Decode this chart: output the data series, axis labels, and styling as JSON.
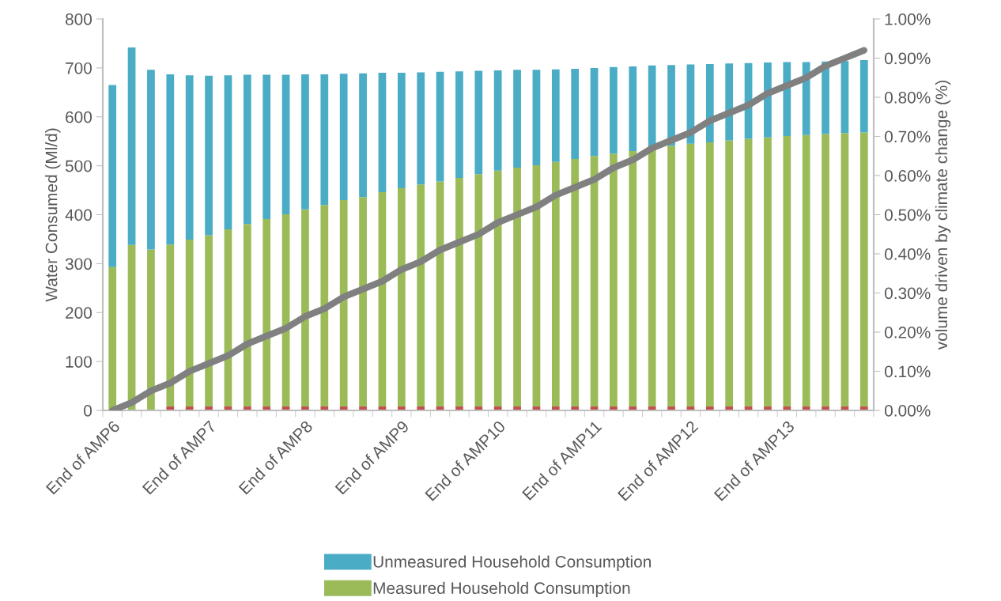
{
  "chart_data": {
    "type": "bar",
    "stacked": true,
    "ylabel": "Water Consumed (Ml/d)",
    "y2label": "volume driven by climate change (%)",
    "categories": [
      "End of AMP6",
      null,
      null,
      null,
      null,
      "End of AMP7",
      null,
      null,
      null,
      null,
      "End of AMP8",
      null,
      null,
      null,
      null,
      "End of AMP9",
      null,
      null,
      null,
      null,
      "End of AMP10",
      null,
      null,
      null,
      null,
      "End of AMP11",
      null,
      null,
      null,
      null,
      "End of AMP12",
      null,
      null,
      null,
      null,
      "End of AMP13",
      null,
      null,
      null,
      null
    ],
    "series": [
      {
        "color": "#c0504d",
        "values": [
          0,
          0,
          0,
          8,
          8,
          8,
          8,
          8,
          8,
          8,
          8,
          8,
          8,
          8,
          8,
          8,
          8,
          8,
          8,
          8,
          8,
          8,
          8,
          8,
          8,
          8,
          8,
          8,
          8,
          8,
          8,
          8,
          8,
          8,
          8,
          8,
          8,
          8,
          8,
          8
        ]
      },
      {
        "name": "Measured Household Consumption",
        "color": "#9bbb59",
        "values": [
          293,
          338,
          329,
          331,
          341,
          350,
          362,
          373,
          383,
          393,
          403,
          412,
          422,
          428,
          438,
          446,
          454,
          460,
          467,
          475,
          482,
          488,
          493,
          500,
          506,
          512,
          517,
          522,
          529,
          533,
          537,
          540,
          544,
          547,
          550,
          553,
          555,
          557,
          559,
          560
        ]
      },
      {
        "name": "Unmeasured Household Consumption",
        "color": "#4bacc6",
        "values": [
          372,
          404,
          367,
          348,
          336,
          326,
          315,
          305,
          295,
          285,
          276,
          267,
          258,
          253,
          244,
          236,
          229,
          224,
          218,
          211,
          205,
          200,
          195,
          189,
          184,
          180,
          177,
          173,
          168,
          165,
          162,
          160,
          157,
          155,
          153,
          151,
          149,
          148,
          147,
          148
        ]
      },
      {
        "type": "line",
        "axis": "y2",
        "color": "#808080",
        "values": [
          0.0,
          0.02,
          0.05,
          0.07,
          0.1,
          0.12,
          0.14,
          0.17,
          0.19,
          0.21,
          0.24,
          0.26,
          0.29,
          0.31,
          0.33,
          0.36,
          0.38,
          0.41,
          0.43,
          0.45,
          0.48,
          0.5,
          0.52,
          0.55,
          0.57,
          0.59,
          0.62,
          0.64,
          0.67,
          0.69,
          0.71,
          0.74,
          0.76,
          0.78,
          0.81,
          0.83,
          0.85,
          0.88,
          0.9,
          0.92
        ]
      }
    ],
    "ylim": [
      0,
      800
    ],
    "yticks": [
      0,
      100,
      200,
      300,
      400,
      500,
      600,
      700,
      800
    ],
    "y2lim": [
      0,
      1
    ],
    "y2ticks": [
      {
        "value": 0,
        "label": "0.00%"
      },
      {
        "value": 0.1,
        "label": "0.10%"
      },
      {
        "value": 0.2,
        "label": "0.20%"
      },
      {
        "value": 0.3,
        "label": "0.30%"
      },
      {
        "value": 0.4,
        "label": "0.40%"
      },
      {
        "value": 0.5,
        "label": "0.50%"
      },
      {
        "value": 0.6,
        "label": "0.60%"
      },
      {
        "value": 0.7,
        "label": "0.70%"
      },
      {
        "value": 0.8,
        "label": "0.80%"
      },
      {
        "value": 0.9,
        "label": "0.90%"
      },
      {
        "value": 1,
        "label": "1.00%"
      }
    ],
    "legend": "bottom",
    "grid": false
  }
}
